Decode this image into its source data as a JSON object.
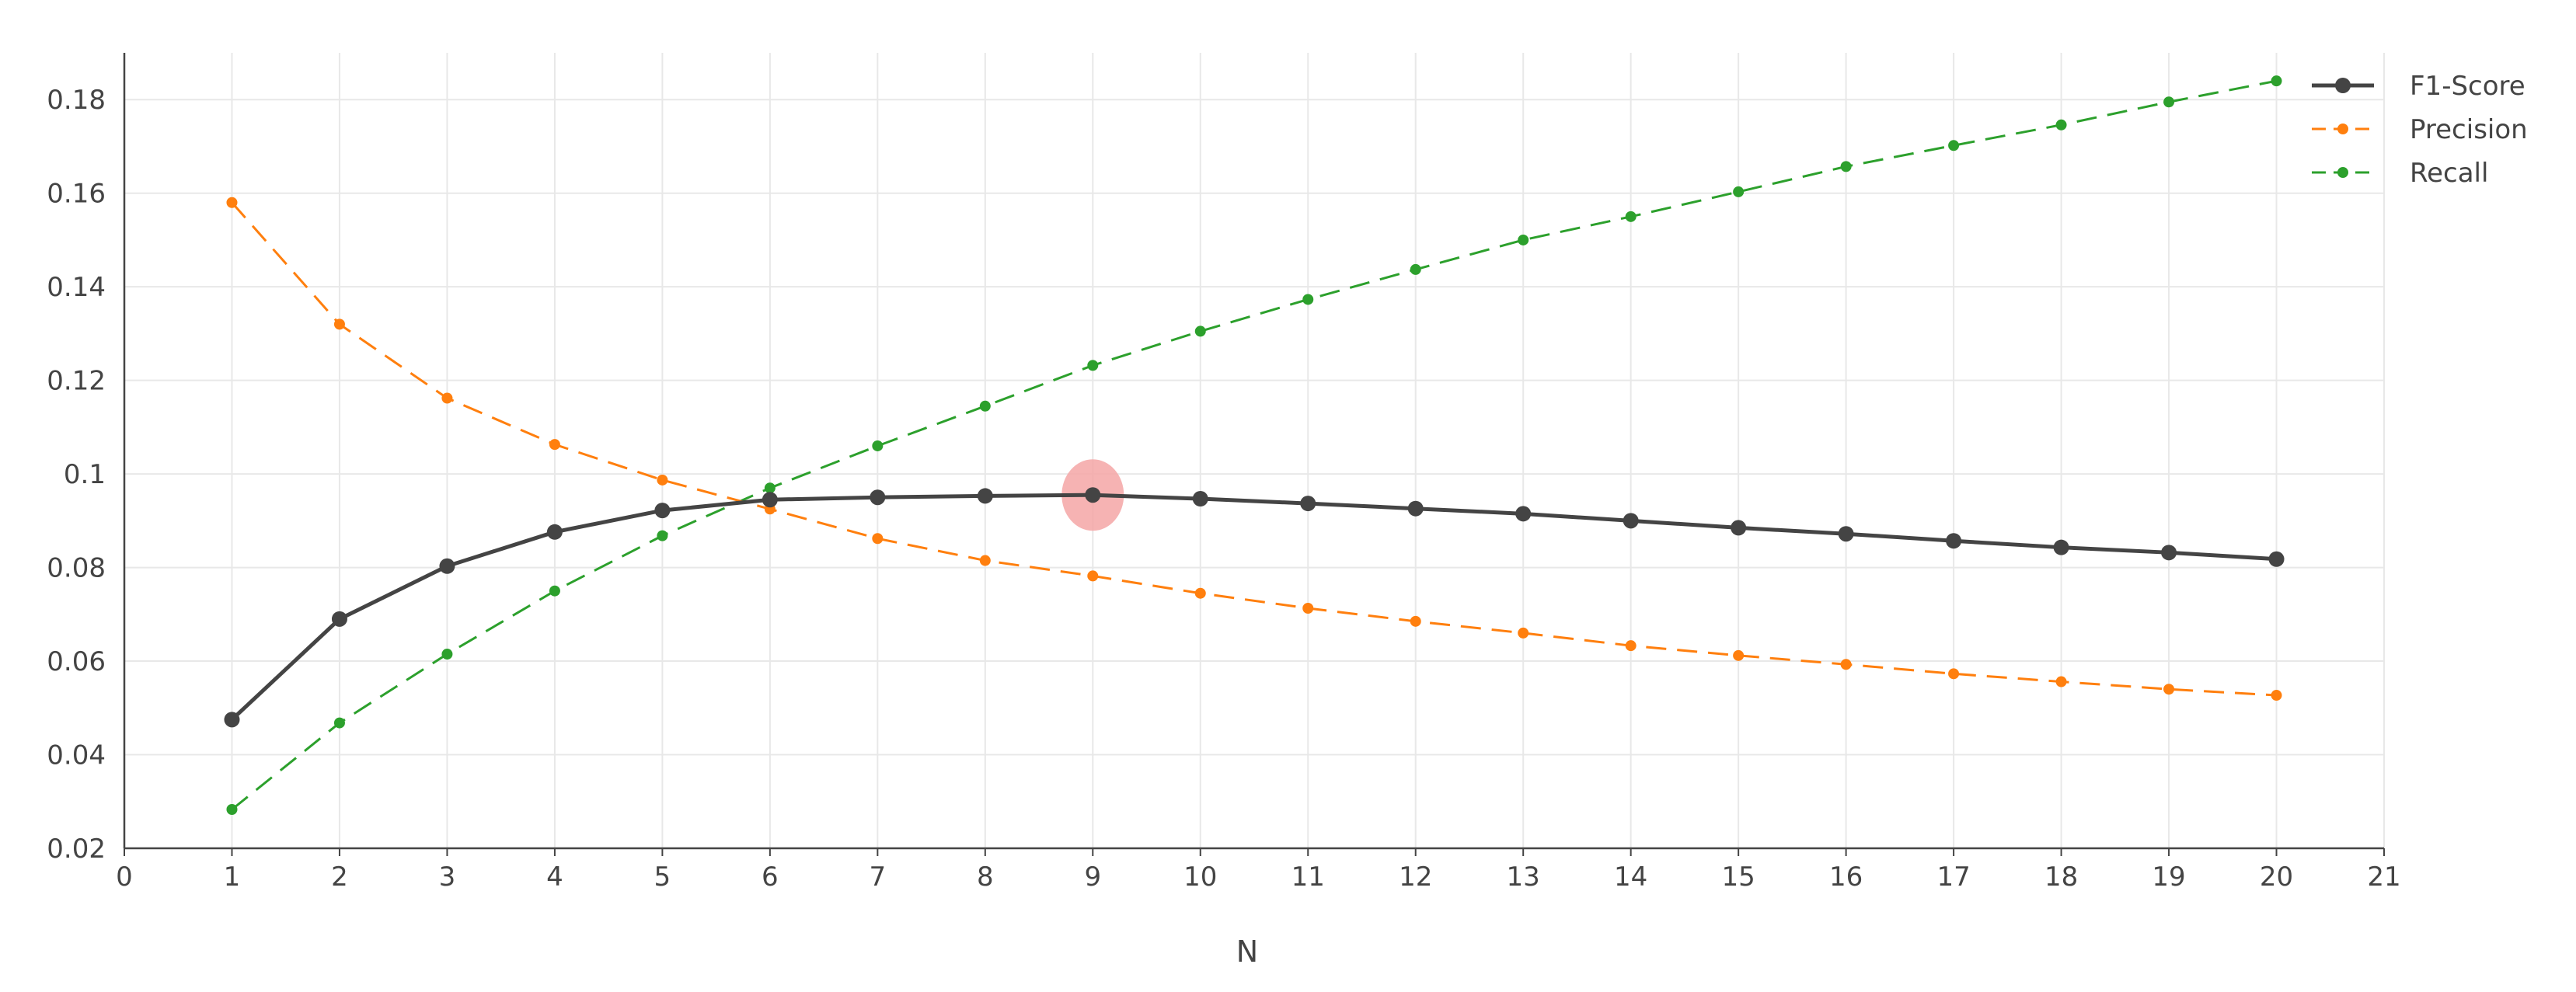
{
  "chart_data": {
    "type": "line",
    "xlabel": "N",
    "ylabel": "",
    "xlim": [
      0,
      21
    ],
    "ylim": [
      0.02,
      0.19
    ],
    "x_ticks": [
      0,
      1,
      2,
      3,
      4,
      5,
      6,
      7,
      8,
      9,
      10,
      11,
      12,
      13,
      14,
      15,
      16,
      17,
      18,
      19,
      20,
      21
    ],
    "y_ticks": [
      0.02,
      0.04,
      0.06,
      0.08,
      0.1,
      0.12,
      0.14,
      0.16,
      0.18
    ],
    "y_tick_labels": [
      "0.02",
      "0.04",
      "0.06",
      "0.08",
      "0.1",
      "0.12",
      "0.14",
      "0.16",
      "0.18"
    ],
    "grid": true,
    "legend_position": "top-right",
    "x": [
      1,
      2,
      3,
      4,
      5,
      6,
      7,
      8,
      9,
      10,
      11,
      12,
      13,
      14,
      15,
      16,
      17,
      18,
      19,
      20
    ],
    "series": [
      {
        "name": "F1-Score",
        "color": "#444444",
        "style": "solid",
        "values": [
          0.0475,
          0.069,
          0.0803,
          0.0876,
          0.0922,
          0.0945,
          0.095,
          0.0953,
          0.0955,
          0.0947,
          0.0937,
          0.0926,
          0.0915,
          0.09,
          0.0885,
          0.0872,
          0.0857,
          0.0843,
          0.0832,
          0.0818
        ]
      },
      {
        "name": "Precision",
        "color": "#ff7f0e",
        "style": "dashed",
        "values": [
          0.158,
          0.132,
          0.1162,
          0.1063,
          0.0987,
          0.0925,
          0.0862,
          0.0815,
          0.0782,
          0.0745,
          0.0713,
          0.0685,
          0.066,
          0.0633,
          0.0612,
          0.0593,
          0.0573,
          0.0556,
          0.054,
          0.0527
        ]
      },
      {
        "name": "Recall",
        "color": "#2ca02c",
        "style": "dashed",
        "values": [
          0.0283,
          0.0468,
          0.0615,
          0.075,
          0.0868,
          0.097,
          0.106,
          0.1145,
          0.1232,
          0.1305,
          0.1373,
          0.1437,
          0.15,
          0.155,
          0.1603,
          0.1657,
          0.1702,
          0.1746,
          0.1795,
          0.184
        ]
      }
    ],
    "highlight": {
      "series": "F1-Score",
      "x": 9,
      "color": "#f4a6a6"
    }
  }
}
